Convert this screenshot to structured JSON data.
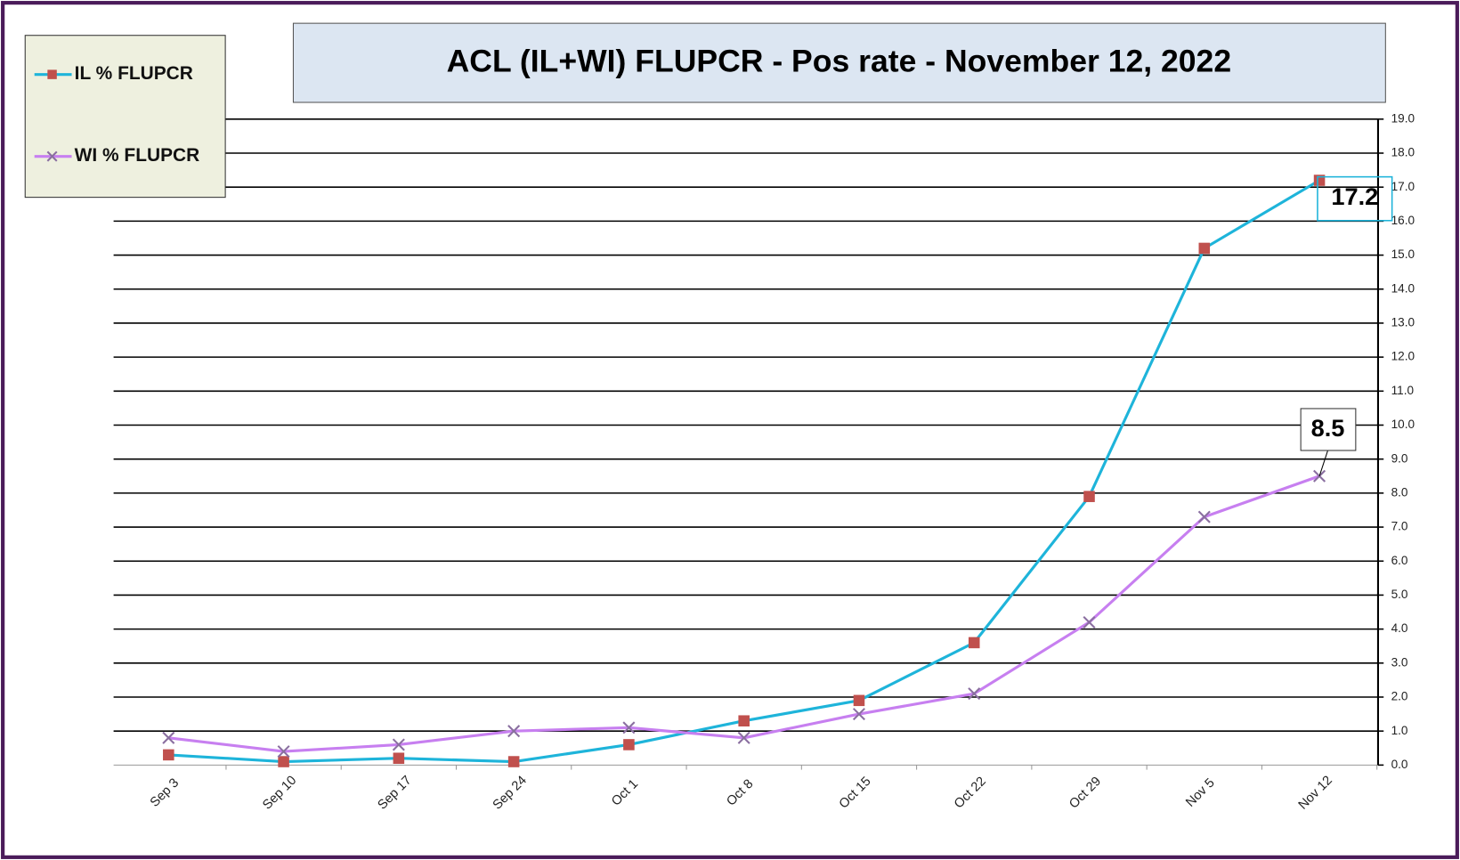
{
  "chart_data": {
    "type": "line",
    "title": "ACL (IL+WI) FLUPCR -  Pos rate  - November 12, 2022",
    "categories": [
      "Sep 3",
      "Sep 10",
      "Sep 17",
      "Sep 24",
      "Oct 1",
      "Oct 8",
      "Oct 15",
      "Oct 22",
      "Oct 29",
      "Nov 5",
      "Nov 12"
    ],
    "series": [
      {
        "name": "IL % FLUPCR",
        "color": "#1eb4da",
        "marker_color": "#c0504d",
        "values": [
          0.3,
          0.1,
          0.2,
          0.1,
          0.6,
          1.3,
          1.9,
          3.6,
          7.9,
          15.2,
          17.2
        ]
      },
      {
        "name": "WI % FLUPCR",
        "color": "#c77ff0",
        "marker_color": "#8a6fa0",
        "values": [
          0.8,
          0.4,
          0.6,
          1.0,
          1.1,
          0.8,
          1.5,
          2.1,
          4.2,
          7.3,
          8.5
        ]
      }
    ],
    "ylim": [
      0,
      19
    ],
    "yticks": [
      {
        "value": 0,
        "label": "0.0"
      },
      {
        "value": 1,
        "label": "1.0"
      },
      {
        "value": 2,
        "label": "2.0"
      },
      {
        "value": 3,
        "label": "3.0"
      },
      {
        "value": 4,
        "label": "4.0"
      },
      {
        "value": 5,
        "label": "5.0"
      },
      {
        "value": 6,
        "label": "6.0"
      },
      {
        "value": 7,
        "label": "7.0"
      },
      {
        "value": 8,
        "label": "8.0"
      },
      {
        "value": 9,
        "label": "9.0"
      },
      {
        "value": 10,
        "label": "10.0"
      },
      {
        "value": 11,
        "label": "11.0"
      },
      {
        "value": 12,
        "label": "12.0"
      },
      {
        "value": 13,
        "label": "13.0"
      },
      {
        "value": 14,
        "label": "14.0"
      },
      {
        "value": 15,
        "label": "15.0"
      },
      {
        "value": 16,
        "label": "16.0"
      },
      {
        "value": 17,
        "label": "17.0"
      },
      {
        "value": 18,
        "label": "18.0"
      },
      {
        "value": 19,
        "label": "19.0"
      }
    ],
    "grid": true,
    "legend": "top-left"
  }
}
